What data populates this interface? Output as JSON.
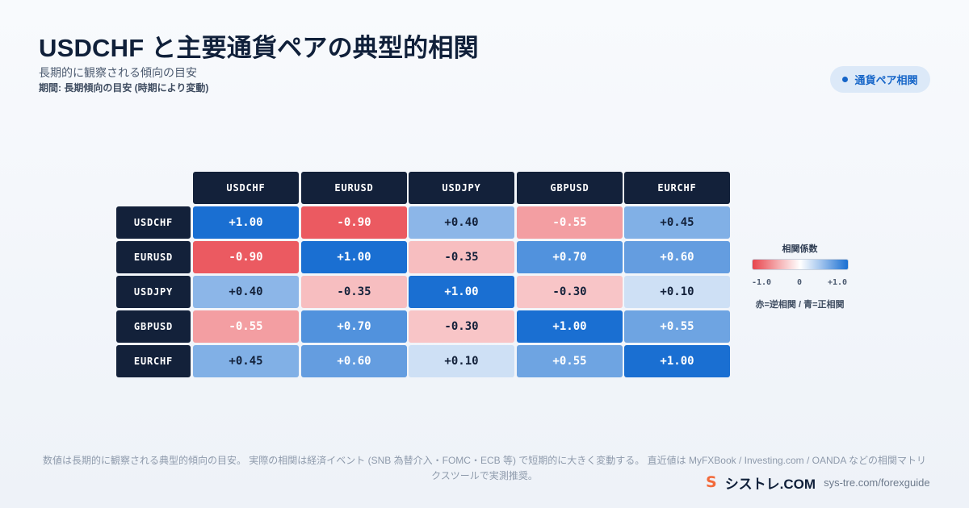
{
  "header": {
    "title": "USDCHF と主要通貨ペアの典型的相関",
    "subtitle": "長期的に観察される傾向の目安",
    "period": "期間: 長期傾向の目安 (時期により変動)"
  },
  "badge": {
    "label": "通貨ペア相関",
    "icon": "dot-icon"
  },
  "chart_data": {
    "type": "heatmap",
    "columns": [
      "USDCHF",
      "EURUSD",
      "USDJPY",
      "GBPUSD",
      "EURCHF"
    ],
    "rows": [
      "USDCHF",
      "EURUSD",
      "USDJPY",
      "GBPUSD",
      "EURCHF"
    ],
    "values": [
      [
        1.0,
        -0.9,
        0.4,
        -0.55,
        0.45
      ],
      [
        -0.9,
        1.0,
        -0.35,
        0.7,
        0.6
      ],
      [
        0.4,
        -0.35,
        1.0,
        -0.3,
        0.1
      ],
      [
        -0.55,
        0.7,
        -0.3,
        1.0,
        0.55
      ],
      [
        0.45,
        0.6,
        0.1,
        0.55,
        1.0
      ]
    ],
    "range": [
      -1,
      1
    ],
    "colors": {
      "negative": "#e8444c",
      "neutral": "#ffffff",
      "positive": "#1a6fd2"
    }
  },
  "legend": {
    "title": "相関係数",
    "min_label": "-1.0",
    "mid_label": "0",
    "max_label": "+1.0",
    "note": "赤=逆相関 / 青=正相関"
  },
  "footer": {
    "note": "数値は長期的に観察される典型的傾向の目安。 実際の相関は経済イベント (SNB 為替介入・FOMC・ECB 等) で短期的に大きく変動する。 直近値は MyFXBook / Investing.com / OANDA などの相関マトリクスツールで実測推奨。",
    "brand_logo": "S",
    "brand_name": "シストレ.COM",
    "brand_url": "sys-tre.com/forexguide"
  }
}
